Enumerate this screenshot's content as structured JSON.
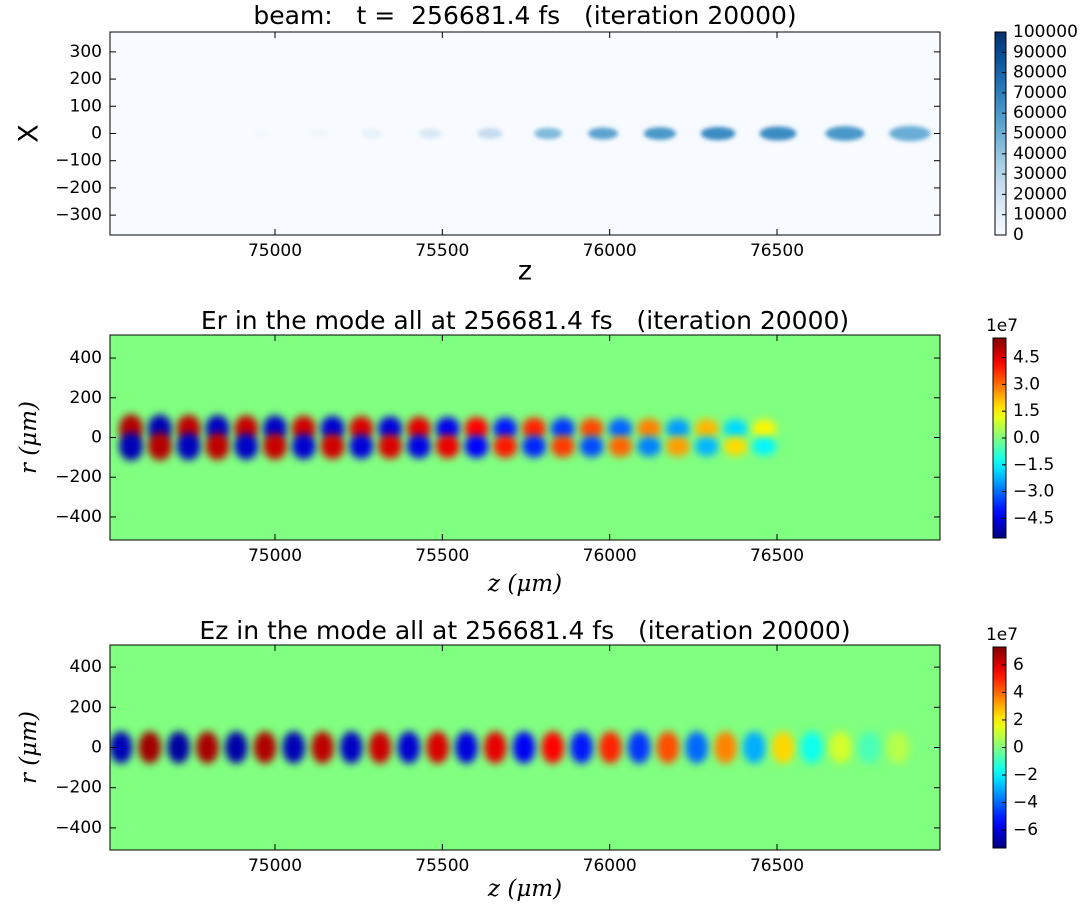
{
  "chart_data": [
    {
      "type": "heatmap",
      "title": "beam:   t =  256681.4 fs   (iteration 20000)",
      "xlabel": "z",
      "ylabel": "X",
      "xlim": [
        74507,
        76987
      ],
      "ylim": [
        -373,
        373
      ],
      "xticks": [
        75000,
        75500,
        76000,
        76500
      ],
      "yticks": [
        {
          "value": -300,
          "label": "−300"
        },
        {
          "value": -200,
          "label": "−200"
        },
        {
          "value": -100,
          "label": "−100"
        },
        0,
        100,
        200,
        300
      ],
      "x": [
        74961,
        75128,
        75290,
        75463,
        75642,
        75816,
        75980,
        76150,
        76324,
        76503,
        76703,
        76897
      ],
      "values": [
        2000,
        4000,
        8000,
        15000,
        25000,
        45000,
        55000,
        60000,
        65000,
        65000,
        60000,
        50000
      ],
      "colorbar": {
        "colormap": "Blues",
        "lim": [
          0,
          100000
        ],
        "ticks": [
          0,
          10000,
          20000,
          30000,
          40000,
          50000,
          60000,
          70000,
          80000,
          90000,
          100000
        ]
      }
    },
    {
      "type": "heatmap",
      "title": "Er in the mode all at 256681.4 fs   (iteration 20000)",
      "xlabel": "z (μm)",
      "ylabel": "r (μm)",
      "xlim": [
        74507,
        76987
      ],
      "ylim": [
        -516,
        516
      ],
      "xticks": [
        75000,
        75500,
        76000,
        76500
      ],
      "yticks": [
        {
          "value": -400,
          "label": "−400"
        },
        {
          "value": -200,
          "label": "−200"
        },
        0,
        200,
        400
      ],
      "x": [
        74570,
        74656,
        74742,
        74828,
        74914,
        75000,
        75086,
        75172,
        75258,
        75344,
        75430,
        75516,
        75602,
        75688,
        75774,
        75860,
        75946,
        76032,
        76118,
        76204,
        76290,
        76376,
        76462
      ],
      "upper_values": [
        5.0,
        -5.0,
        4.9,
        -4.9,
        4.8,
        -4.8,
        4.7,
        -4.7,
        4.6,
        -4.6,
        4.5,
        -4.4,
        4.2,
        -4.0,
        3.8,
        -3.6,
        3.4,
        -3.1,
        2.8,
        -2.5,
        2.2,
        -1.8,
        1.5
      ],
      "lower_values": [
        -5.0,
        5.0,
        -4.9,
        4.9,
        -4.8,
        4.8,
        -4.7,
        4.7,
        -4.6,
        4.6,
        -4.5,
        4.4,
        -4.2,
        4.0,
        -3.8,
        3.6,
        -3.4,
        3.1,
        -2.8,
        2.5,
        -2.2,
        1.8,
        -1.5
      ],
      "colorbar": {
        "colormap": "jet",
        "lim": [
          -5.6,
          5.6
        ],
        "offset_label": "1e7",
        "ticks": [
          {
            "value": -4.5,
            "label": "−4.5"
          },
          {
            "value": -3.0,
            "label": "−3.0"
          },
          {
            "value": -1.5,
            "label": "−1.5"
          },
          {
            "value": 0,
            "label": "0.0"
          },
          1.5,
          {
            "value": 3,
            "label": "3.0"
          },
          4.5
        ]
      }
    },
    {
      "type": "heatmap",
      "title": "Ez in the mode all at 256681.4 fs   (iteration 20000)",
      "xlabel": "z (μm)",
      "ylabel": "r (μm)",
      "xlim": [
        74507,
        76987
      ],
      "ylim": [
        -510,
        510
      ],
      "xticks": [
        75000,
        75500,
        76000,
        76500
      ],
      "yticks": [
        {
          "value": -400,
          "label": "−400"
        },
        {
          "value": -200,
          "label": "−200"
        },
        0,
        200,
        400
      ],
      "x": [
        74540,
        74626,
        74712,
        74798,
        74884,
        74970,
        75056,
        75142,
        75228,
        75314,
        75400,
        75486,
        75572,
        75658,
        75744,
        75830,
        75916,
        76002,
        76088,
        76174,
        76260,
        76346,
        76432,
        76518,
        76604,
        76690,
        76776,
        76862
      ],
      "values": [
        -6.5,
        6.8,
        -6.8,
        6.7,
        -6.7,
        6.6,
        -6.5,
        6.4,
        -6.3,
        6.2,
        -6.1,
        6.0,
        -5.9,
        5.8,
        -5.6,
        5.4,
        -5.2,
        5.0,
        -4.7,
        4.4,
        -4.0,
        3.6,
        -3.0,
        2.4,
        -1.6,
        1.2,
        -0.8,
        0.8
      ],
      "colorbar": {
        "colormap": "jet",
        "lim": [
          -7.3,
          7.3
        ],
        "offset_label": "1e7",
        "ticks": [
          {
            "value": -6,
            "label": "−6"
          },
          {
            "value": -4,
            "label": "−4"
          },
          {
            "value": -2,
            "label": "−2"
          },
          0,
          2,
          4,
          6
        ]
      }
    }
  ]
}
